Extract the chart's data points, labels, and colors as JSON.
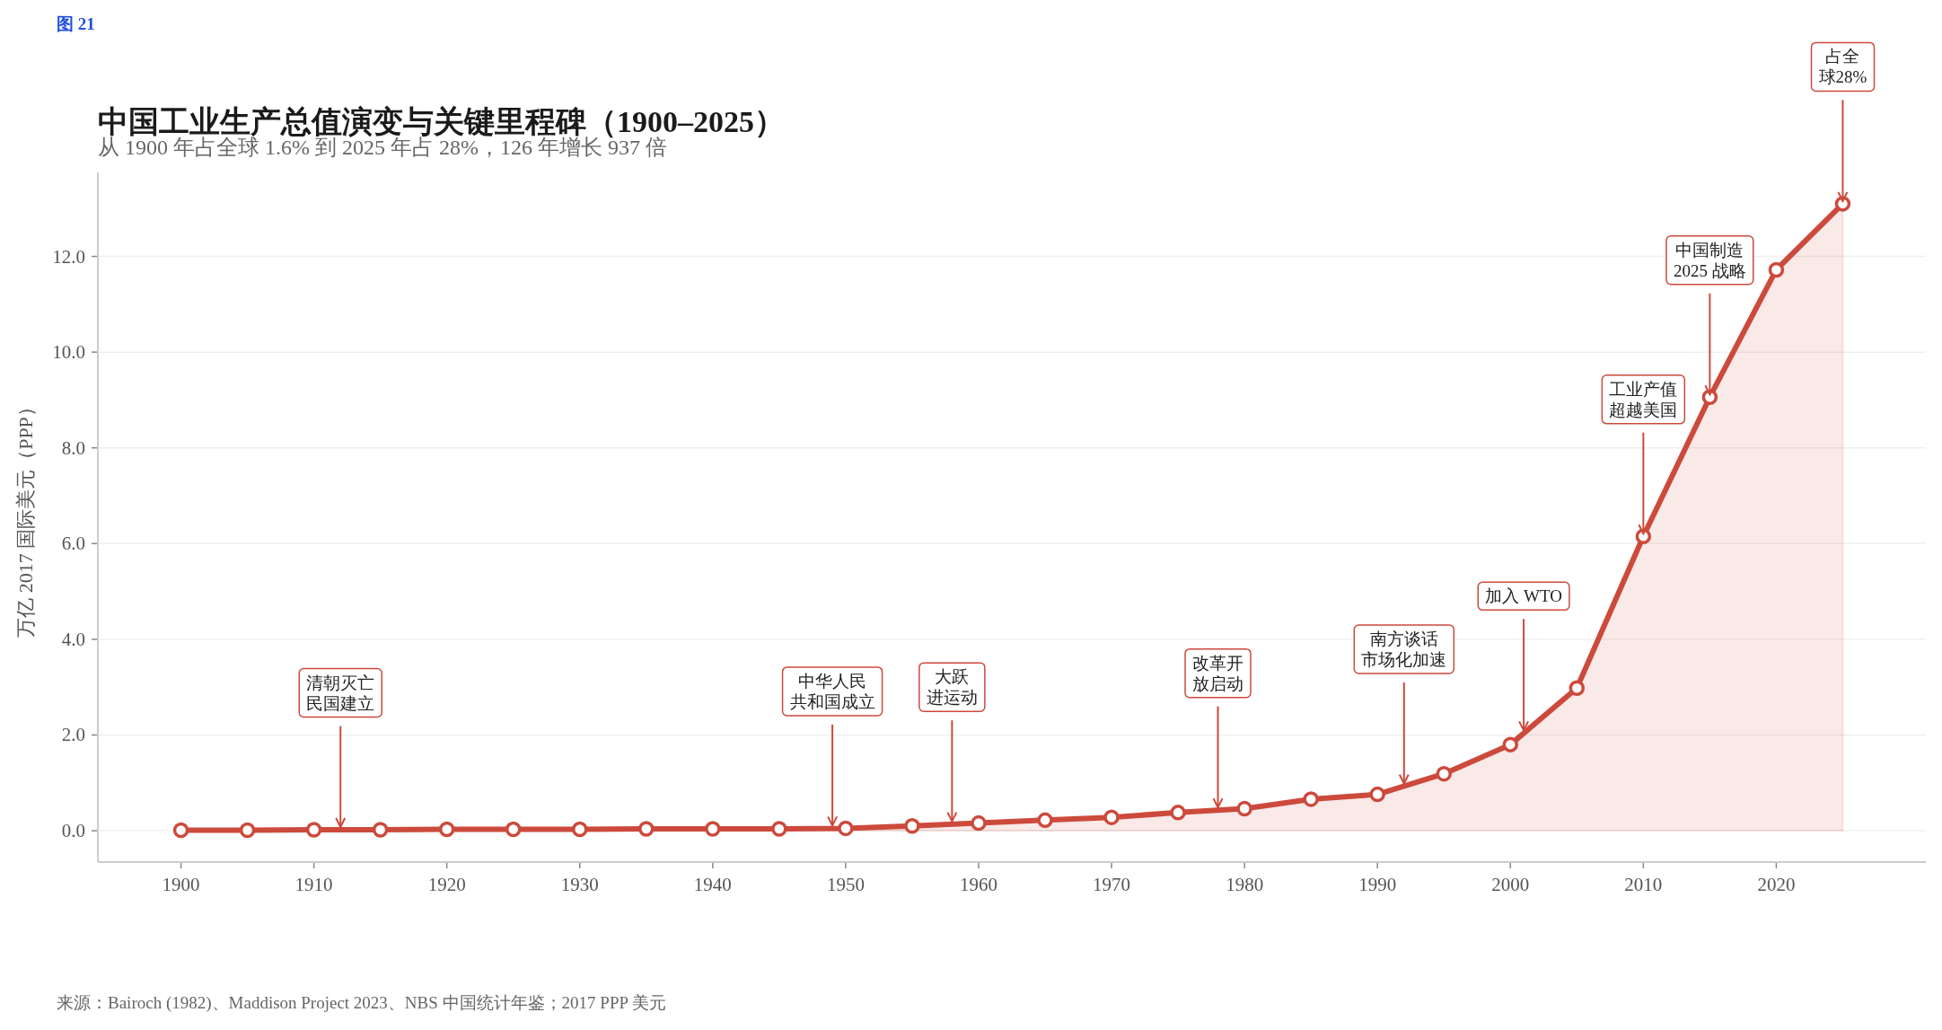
{
  "chart_data": {
    "type": "area",
    "title": "中国工业生产总值演变与关键里程碑（1900–2025）",
    "subtitle": "从 1900 年占全球 1.6% 到 2025 年占 28%，126 年增长 937 倍",
    "ylabel": "万亿 2017 国际美元（PPP）",
    "x": [
      1900,
      1905,
      1910,
      1915,
      1920,
      1925,
      1930,
      1935,
      1940,
      1945,
      1950,
      1955,
      1960,
      1965,
      1970,
      1975,
      1980,
      1985,
      1990,
      1995,
      2000,
      2005,
      2010,
      2015,
      2020,
      2025
    ],
    "series": [
      {
        "color": "#cc4a3c",
        "values": [
          0.01,
          0.01,
          0.02,
          0.02,
          0.03,
          0.03,
          0.03,
          0.04,
          0.04,
          0.04,
          0.05,
          0.1,
          0.16,
          0.22,
          0.28,
          0.38,
          0.46,
          0.66,
          0.76,
          1.19,
          1.8,
          2.98,
          6.15,
          9.06,
          11.72,
          13.1
        ]
      }
    ],
    "xlim": [
      1893.75,
      2031.25
    ],
    "ylim": [
      -0.655,
      13.755
    ],
    "xticks": [
      1900,
      1910,
      1920,
      1930,
      1940,
      1950,
      1960,
      1970,
      1980,
      1990,
      2000,
      2010,
      2020
    ],
    "yticks": [
      {
        "value": 0,
        "label": "0.0"
      },
      {
        "value": 2,
        "label": "2.0"
      },
      {
        "value": 4,
        "label": "4.0"
      },
      {
        "value": 6,
        "label": "6.0"
      },
      {
        "value": 8,
        "label": "8.0"
      },
      {
        "value": 10,
        "label": "10.0"
      },
      {
        "value": 12,
        "label": "12.0"
      }
    ],
    "grid": "y",
    "marker": "circle",
    "line_style": "solid",
    "annotations": [
      "图 21",
      {
        "text": "清朝灭亡民国建立",
        "x": 1912,
        "y": 0.02
      },
      {
        "text": "中华人民共和国成立",
        "x": 1949,
        "y": 0.05
      },
      {
        "text": "大跃进运动",
        "x": 1958,
        "y": 0.14
      },
      {
        "text": "改革开放启动",
        "x": 1978,
        "y": 0.43
      },
      {
        "text": "南方谈话市场化加速",
        "x": 1992,
        "y": 0.93
      },
      {
        "text": "加入 WTO",
        "x": 2001,
        "y": 2.04
      },
      {
        "text": "工业产值超越美国",
        "x": 2010,
        "y": 6.15
      },
      {
        "text": "中国制造2025 战略",
        "x": 2015,
        "y": 9.06
      },
      {
        "text": "占全球28%",
        "x": 2025,
        "y": 13.1
      },
      "来源：Bairoch (1982)、Maddison Project 2023、NBS 中国统计年鉴；2017 PPP 美元"
    ]
  }
}
